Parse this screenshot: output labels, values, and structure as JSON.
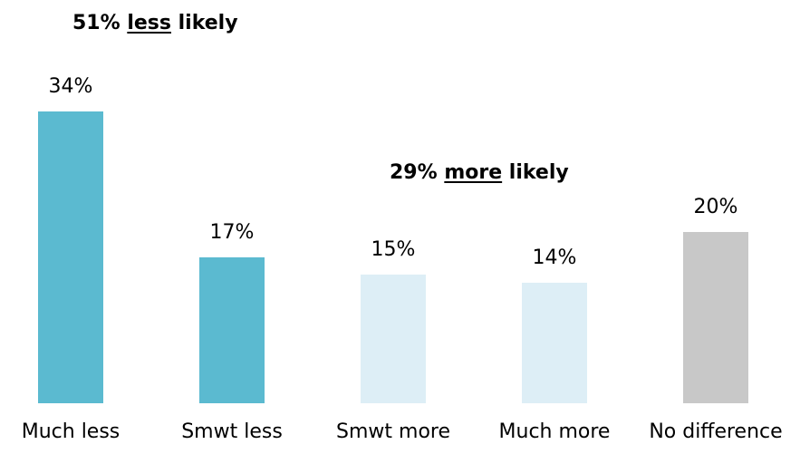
{
  "chart_data": {
    "type": "bar",
    "categories": [
      "Much less",
      "Smwt less",
      "Smwt more",
      "Much more",
      "No difference"
    ],
    "values": [
      34,
      17,
      15,
      14,
      20
    ],
    "value_labels": [
      "34%",
      "17%",
      "15%",
      "14%",
      "20%"
    ],
    "bar_colors": [
      "#5bbad0",
      "#5bbad0",
      "#ddeef6",
      "#ddeef6",
      "#c8c8c8"
    ],
    "ylim": [
      0,
      34
    ],
    "grid": false,
    "legend": "none",
    "annotations": [
      {
        "pre": "51% ",
        "underlined": "less",
        "post": " likely"
      },
      {
        "pre": "29% ",
        "underlined": "more",
        "post": " likely"
      }
    ]
  }
}
